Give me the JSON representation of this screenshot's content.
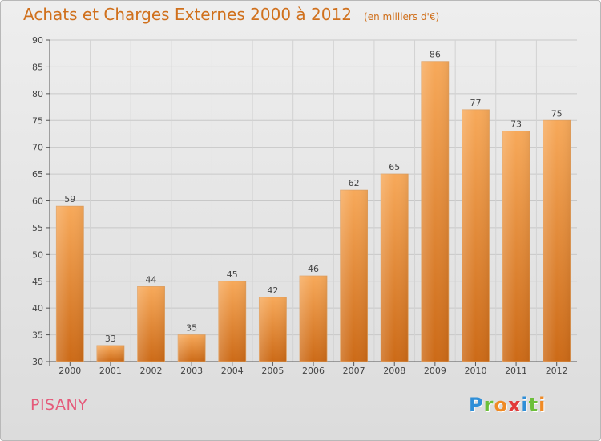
{
  "chart_data": {
    "type": "bar",
    "title": "Achats et Charges Externes 2000 à 2012",
    "subtitle": "(en milliers d'€)",
    "categories": [
      "2000",
      "2001",
      "2002",
      "2003",
      "2004",
      "2005",
      "2006",
      "2007",
      "2008",
      "2009",
      "2010",
      "2011",
      "2012"
    ],
    "values": [
      59,
      33,
      44,
      35,
      45,
      42,
      46,
      62,
      65,
      86,
      77,
      73,
      75
    ],
    "ylim": [
      30,
      90
    ],
    "yticks": [
      30,
      35,
      40,
      45,
      50,
      55,
      60,
      65,
      70,
      75,
      80,
      85,
      90
    ],
    "grid": true,
    "bar_color_top": "#f7a95a",
    "bar_color_bottom": "#cc6a17"
  },
  "footer": {
    "town": "PISANY",
    "logo_letters": [
      {
        "ch": "P",
        "color": "#2f8fd8"
      },
      {
        "ch": "r",
        "color": "#6cbf3a"
      },
      {
        "ch": "o",
        "color": "#f08a24"
      },
      {
        "ch": "x",
        "color": "#e23b3b"
      },
      {
        "ch": "i",
        "color": "#2f8fd8"
      },
      {
        "ch": "t",
        "color": "#6cbf3a"
      },
      {
        "ch": "i",
        "color": "#f08a24"
      }
    ]
  },
  "colors": {
    "title": "#d0701c",
    "town": "#e55a7a"
  }
}
